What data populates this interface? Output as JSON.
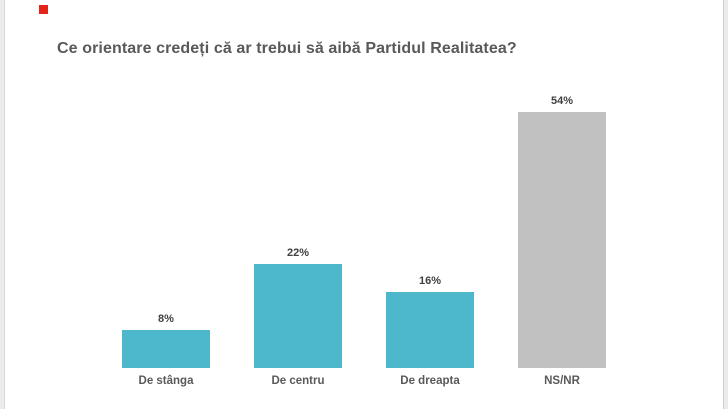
{
  "title": "Ce orientare credeți că ar trebui să aibă Partidul Realitatea?",
  "marker": {
    "name": "red-square",
    "color": "#e1251b"
  },
  "colors": {
    "bar_teal": "#4db8cc",
    "bar_gray": "#c1c1c1",
    "title_text": "#595959",
    "label_text": "#595959",
    "value_text": "#404040",
    "background": "#ffffff",
    "edge_strip": "#ebebeb"
  },
  "chart_data": {
    "type": "bar",
    "title": "Ce orientare credeți că ar trebui să aibă Partidul Realitatea?",
    "categories": [
      "De stânga",
      "De centru",
      "De dreapta",
      "NS/NR"
    ],
    "values": [
      8,
      22,
      16,
      54
    ],
    "value_labels": [
      "8%",
      "22%",
      "16%",
      "54%"
    ],
    "bar_colors": [
      "#4db8cc",
      "#4db8cc",
      "#4db8cc",
      "#c1c1c1"
    ],
    "xlabel": "",
    "ylabel": "",
    "ylim": [
      0,
      60
    ],
    "grid": false,
    "legend": false,
    "axes_visible": false,
    "data_labels_position": "above-bar"
  }
}
